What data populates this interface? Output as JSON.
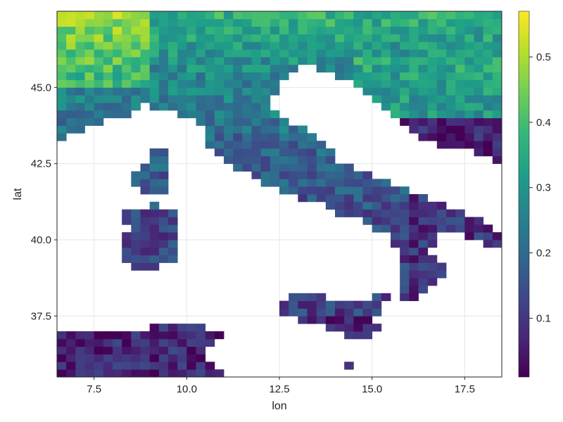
{
  "chart_data": {
    "type": "heatmap",
    "xlabel": "lon",
    "ylabel": "lat",
    "xlim": [
      6.5,
      18.5
    ],
    "ylim": [
      35.5,
      47.5
    ],
    "x_ticks": [
      "7.5",
      "10.0",
      "12.5",
      "15.0",
      "17.5"
    ],
    "y_ticks": [
      "37.5",
      "40.0",
      "42.5",
      "45.0"
    ],
    "colorbar": {
      "colormap": "viridis",
      "range": [
        0.01,
        0.57
      ],
      "ticks": [
        "0.1",
        "0.2",
        "0.3",
        "0.4",
        "0.5"
      ]
    },
    "grid": true,
    "cell_size_deg": 0.25,
    "value_pattern": "higher values (0.3-0.57) over the Alps and northern Italy, lowest values (~0.01-0.1) in southern Sardinia, Tunisia coast and Adriatic south; sea cells are blank",
    "colors": {
      "viridis": [
        "#440154",
        "#482878",
        "#3e4989",
        "#31688e",
        "#26828e",
        "#1f9e89",
        "#35b779",
        "#6ece58",
        "#b5de2b",
        "#fde725"
      ]
    }
  }
}
